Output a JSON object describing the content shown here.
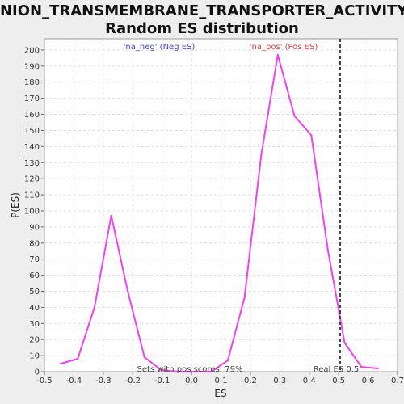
{
  "chart_data": {
    "type": "line",
    "title_line1": "ANION_TRANSMEMBRANE_TRANSPORTER_ACTIVITY:",
    "title_line2": "Random ES distribution",
    "xlabel": "ES",
    "ylabel": "P(ES)",
    "xlim": [
      -0.5,
      0.7
    ],
    "ylim": [
      0,
      207
    ],
    "x_ticks": [
      -0.5,
      -0.4,
      -0.3,
      -0.2,
      -0.1,
      0.0,
      0.1,
      0.2,
      0.3,
      0.4,
      0.5,
      0.6,
      0.7
    ],
    "x_tick_labels": [
      "-0.5",
      "-0.4",
      "-0.3",
      "-0.2",
      "-0.1",
      "0.0",
      "0.1",
      "0.2",
      "0.3",
      "0.4",
      "0.5",
      "0.6",
      "0.7"
    ],
    "y_ticks": [
      0,
      10,
      20,
      30,
      40,
      50,
      60,
      70,
      80,
      90,
      100,
      110,
      120,
      130,
      140,
      150,
      160,
      170,
      180,
      190,
      200
    ],
    "grid": true,
    "series": [
      {
        "color": "#ee44ee",
        "x": [
          -0.445,
          -0.387,
          -0.33,
          -0.273,
          -0.217,
          -0.16,
          -0.103,
          -0.047,
          0.01,
          0.067,
          0.123,
          0.18,
          0.237,
          0.293,
          0.35,
          0.407,
          0.463,
          0.52,
          0.577,
          0.633
        ],
        "y": [
          5,
          8,
          40,
          97,
          50,
          9,
          1,
          0,
          0,
          0,
          7,
          46,
          135,
          197,
          159,
          147,
          76,
          18,
          3,
          2
        ]
      }
    ],
    "real_es": {
      "x": 0.505,
      "label": "Real ES 0.5",
      "color": "#444444"
    },
    "annotations": {
      "neg_label": "'na_neg' (Neg ES)",
      "neg_color": "#4444cc",
      "pos_label": "'na_pos' (Pos ES)",
      "pos_color": "#dd4444",
      "sets_label": "Sets with pos scores: 79%"
    }
  }
}
